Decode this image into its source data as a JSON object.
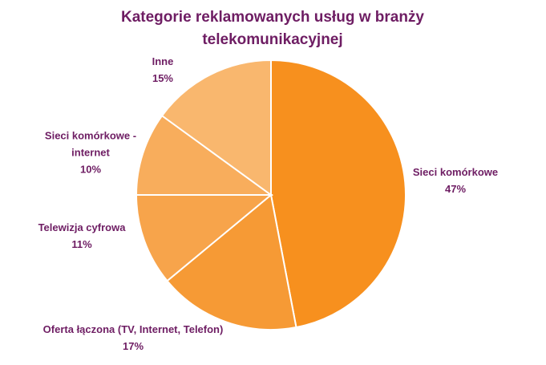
{
  "chart_data": {
    "type": "pie",
    "title": "Kategorie reklamowanych usług w branży telekomunikacyjnej",
    "categories": [
      "Sieci komórkowe",
      "Oferta łączona (TV, Internet, Telefon)",
      "Telewizja cyfrowa",
      "Sieci komórkowe - internet",
      "Inne"
    ],
    "values": [
      47,
      17,
      11,
      10,
      15
    ],
    "value_labels": [
      "47%",
      "17%",
      "11%",
      "10%",
      "15%"
    ],
    "colors": [
      "#f7901e",
      "#f69a35",
      "#f7a44b",
      "#f8ad5c",
      "#f9b76e"
    ]
  }
}
